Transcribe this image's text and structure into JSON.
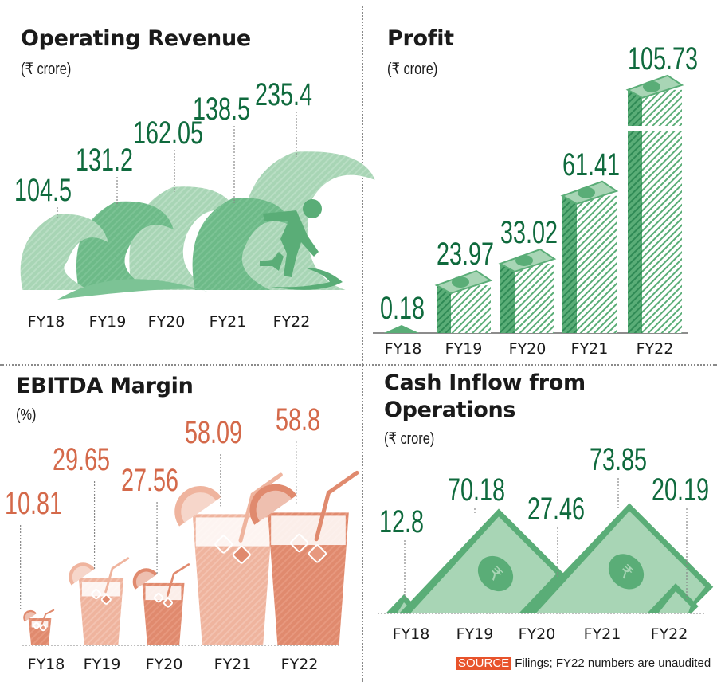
{
  "colors": {
    "green_dark": "#0f6a3d",
    "green_mid": "#5aad77",
    "green_light": "#a8d5b5",
    "orange_text": "#d4694a",
    "orange_mid": "#e08a6e",
    "orange_light": "#efb49e",
    "source_tag": "#e8532b"
  },
  "chart_data": [
    {
      "id": "operating-revenue",
      "type": "bar",
      "title": "Operating Revenue",
      "unit": "(₹ crore)",
      "categories": [
        "FY18",
        "FY19",
        "FY20",
        "FY21",
        "FY22"
      ],
      "values": [
        104.5,
        131.2,
        162.05,
        138.5,
        235.4
      ],
      "labels": [
        "104.5",
        "131.2",
        "162.05",
        "138.5",
        "235.4"
      ],
      "style": "pictograph-waves"
    },
    {
      "id": "profit",
      "type": "bar",
      "title": "Profit",
      "unit": "(₹ crore)",
      "categories": [
        "FY18",
        "FY19",
        "FY20",
        "FY21",
        "FY22"
      ],
      "values": [
        0.18,
        23.97,
        33.02,
        61.41,
        105.73
      ],
      "labels": [
        "0.18",
        "23.97",
        "33.02",
        "61.41",
        "105.73"
      ],
      "style": "pictograph-cash-stacks"
    },
    {
      "id": "ebitda-margin",
      "type": "bar",
      "title": "EBITDA Margin",
      "unit": "(%)",
      "categories": [
        "FY18",
        "FY19",
        "FY20",
        "FY21",
        "FY22"
      ],
      "values": [
        10.81,
        29.65,
        27.56,
        58.09,
        58.8
      ],
      "labels": [
        "10.81",
        "29.65",
        "27.56",
        "58.09",
        "58.8"
      ],
      "style": "pictograph-glasses"
    },
    {
      "id": "cash-inflow",
      "type": "bar",
      "title_line1": "Cash Inflow from",
      "title_line2": "Operations",
      "unit": "(₹ crore)",
      "categories": [
        "FY18",
        "FY19",
        "FY20",
        "FY21",
        "FY22"
      ],
      "values": [
        12.8,
        70.18,
        27.46,
        73.85,
        20.19
      ],
      "labels": [
        "12.8",
        "70.18",
        "27.46",
        "73.85",
        "20.19"
      ],
      "style": "pictograph-banknotes"
    }
  ],
  "source": {
    "tag": "SOURCE",
    "text": "Filings; FY22 numbers are unaudited"
  }
}
